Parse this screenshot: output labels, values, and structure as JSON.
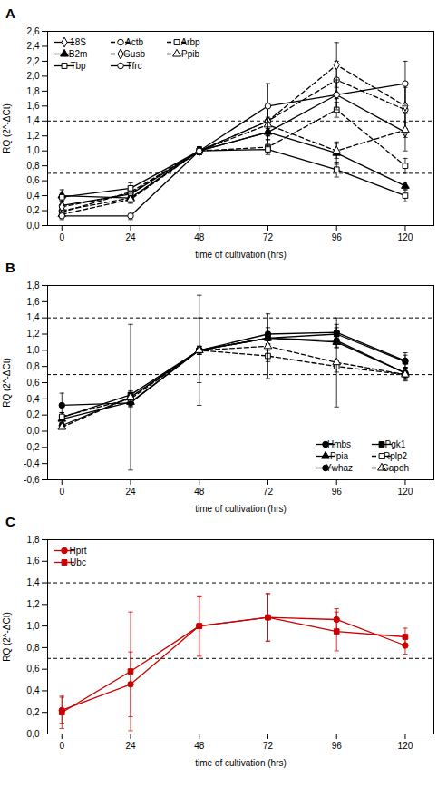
{
  "chart_data": [
    {
      "type": "line",
      "title": "A",
      "xlabel": "time of cultivation (hrs)",
      "ylabel": "RQ (2^-ΔCt)",
      "x": [
        0,
        24,
        48,
        72,
        96,
        120
      ],
      "xlim": [
        -5,
        130
      ],
      "xticks": [
        0,
        24,
        48,
        72,
        96,
        120
      ],
      "ylim": [
        0.0,
        2.6
      ],
      "yticks": [
        {
          "value": 0.0,
          "label": "0,0"
        },
        {
          "value": 0.2,
          "label": "0,2"
        },
        {
          "value": 0.4,
          "label": "0,4"
        },
        {
          "value": 0.6,
          "label": "0,6"
        },
        {
          "value": 0.8,
          "label": "0,8"
        },
        {
          "value": 1.0,
          "label": "1,0"
        },
        {
          "value": 1.2,
          "label": "1,2"
        },
        {
          "value": 1.4,
          "label": "1,4"
        },
        {
          "value": 1.6,
          "label": "1,6"
        },
        {
          "value": 1.8,
          "label": "1,8"
        },
        {
          "value": 2.0,
          "label": "2,0"
        },
        {
          "value": 2.2,
          "label": "2,2"
        },
        {
          "value": 2.4,
          "label": "2,4"
        },
        {
          "value": 2.6,
          "label": "2,6"
        }
      ],
      "hlines": [
        1.4,
        0.7
      ],
      "grid": false,
      "legend": "upper left",
      "series": [
        {
          "name": "18S",
          "values": [
            0.27,
            0.42,
            1.0,
            1.25,
            1.75,
            1.25
          ],
          "yerr": [
            0.1,
            0.05,
            0.05,
            0.15,
            0.2,
            0.25
          ],
          "line_style": "solid",
          "marker": "diamond-open",
          "color": "#000000"
        },
        {
          "name": "Actb",
          "values": [
            0.2,
            0.37,
            1.0,
            1.4,
            1.95,
            1.55
          ],
          "yerr": [
            0.08,
            0.07,
            0.05,
            0.2,
            0.25,
            0.3
          ],
          "line_style": "dashed",
          "marker": "circle-open",
          "color": "#000000"
        },
        {
          "name": "Arbp",
          "values": [
            0.18,
            0.45,
            1.0,
            1.05,
            1.55,
            0.8
          ],
          "yerr": [
            0.05,
            0.06,
            0.05,
            0.1,
            0.1,
            0.1
          ],
          "line_style": "dashed",
          "marker": "square-open",
          "color": "#000000"
        },
        {
          "name": "B2m",
          "values": [
            0.4,
            0.37,
            1.0,
            1.25,
            0.97,
            0.53
          ],
          "yerr": [
            0.08,
            0.05,
            0.05,
            0.1,
            0.15,
            0.05
          ],
          "line_style": "solid",
          "marker": "triangle",
          "color": "#000000"
        },
        {
          "name": "Gusb",
          "values": [
            0.25,
            0.43,
            1.0,
            1.4,
            2.15,
            1.6
          ],
          "yerr": [
            0.1,
            0.08,
            0.05,
            0.2,
            0.3,
            0.3
          ],
          "line_style": "dashed",
          "marker": "diamond-open",
          "color": "#000000"
        },
        {
          "name": "Ppib",
          "values": [
            0.15,
            0.35,
            1.0,
            1.35,
            1.0,
            1.28
          ],
          "yerr": [
            0.05,
            0.05,
            0.05,
            0.1,
            0.1,
            0.1
          ],
          "line_style": "dashed",
          "marker": "triangle-open",
          "color": "#000000"
        },
        {
          "name": "Tbp",
          "values": [
            0.38,
            0.5,
            1.0,
            1.02,
            0.75,
            0.4
          ],
          "yerr": [
            0.05,
            0.07,
            0.05,
            0.05,
            0.1,
            0.08
          ],
          "line_style": "solid",
          "marker": "square-open",
          "color": "#000000"
        },
        {
          "name": "Tfrc",
          "values": [
            0.13,
            0.13,
            1.0,
            1.6,
            1.75,
            1.9
          ],
          "yerr": [
            0.05,
            0.05,
            0.05,
            0.3,
            0.2,
            0.3
          ],
          "line_style": "solid",
          "marker": "circle-open",
          "color": "#000000"
        }
      ]
    },
    {
      "type": "line",
      "title": "B",
      "xlabel": "time of cultivation (hrs)",
      "ylabel": "RQ (2^-ΔCt)",
      "x": [
        0,
        24,
        48,
        72,
        96,
        120
      ],
      "xlim": [
        -5,
        130
      ],
      "xticks": [
        0,
        24,
        48,
        72,
        96,
        120
      ],
      "ylim": [
        -0.6,
        1.8
      ],
      "yticks": [
        {
          "value": -0.6,
          "label": "-0,6"
        },
        {
          "value": -0.4,
          "label": "-0,4"
        },
        {
          "value": -0.2,
          "label": "-0,2"
        },
        {
          "value": 0.0,
          "label": "0,0"
        },
        {
          "value": 0.2,
          "label": "0,2"
        },
        {
          "value": 0.4,
          "label": "0,4"
        },
        {
          "value": 0.6,
          "label": "0,6"
        },
        {
          "value": 0.8,
          "label": "0,8"
        },
        {
          "value": 1.0,
          "label": "1,0"
        },
        {
          "value": 1.2,
          "label": "1,2"
        },
        {
          "value": 1.4,
          "label": "1,4"
        },
        {
          "value": 1.6,
          "label": "1,6"
        },
        {
          "value": 1.8,
          "label": "1,8"
        }
      ],
      "hlines": [
        1.4,
        0.7
      ],
      "grid": false,
      "legend": "lower right",
      "series": [
        {
          "name": "Hmbs",
          "values": [
            0.32,
            0.35,
            1.0,
            1.2,
            1.22,
            0.87
          ],
          "yerr": [
            0.15,
            0.05,
            0.05,
            0.08,
            0.1,
            0.1
          ],
          "line_style": "solid",
          "marker": "circle",
          "color": "#000000"
        },
        {
          "name": "Pgk1",
          "values": [
            0.17,
            0.45,
            1.0,
            1.15,
            1.2,
            0.86
          ],
          "yerr": [
            0.06,
            0.05,
            0.05,
            0.07,
            0.08,
            0.08
          ],
          "line_style": "solid",
          "marker": "square",
          "color": "#000000"
        },
        {
          "name": "Ppia",
          "values": [
            0.15,
            0.36,
            1.0,
            1.15,
            1.1,
            0.72
          ],
          "yerr": [
            0.05,
            0.05,
            0.05,
            0.07,
            0.07,
            0.07
          ],
          "line_style": "solid",
          "marker": "triangle",
          "color": "#000000"
        },
        {
          "name": "Rplp2",
          "values": [
            0.18,
            0.4,
            1.0,
            0.93,
            0.8,
            0.7
          ],
          "yerr": [
            0.05,
            0.05,
            0.05,
            0.07,
            0.07,
            0.07
          ],
          "line_style": "dashed",
          "marker": "square-open",
          "color": "#000000"
        },
        {
          "name": "Ywhaz",
          "values": [
            0.07,
            0.42,
            1.0,
            1.15,
            1.12,
            0.72
          ],
          "yerr": [
            0.03,
            0.9,
            0.68,
            0.08,
            0.08,
            0.07
          ],
          "line_style": "solid",
          "marker": "circle",
          "color": "#000000"
        },
        {
          "name": "Gapdh",
          "values": [
            0.05,
            0.42,
            1.0,
            1.05,
            0.85,
            0.7
          ],
          "yerr": [
            0.02,
            0.05,
            0.4,
            0.4,
            0.55,
            0.08
          ],
          "line_style": "dashed",
          "marker": "triangle-open",
          "color": "#000000"
        }
      ]
    },
    {
      "type": "line",
      "title": "C",
      "xlabel": "time of cultivation (hrs)",
      "ylabel": "RQ (2^-ΔCt)",
      "x": [
        0,
        24,
        48,
        72,
        96,
        120
      ],
      "xlim": [
        -5,
        130
      ],
      "xticks": [
        0,
        24,
        48,
        72,
        96,
        120
      ],
      "ylim": [
        0.0,
        1.8
      ],
      "yticks": [
        {
          "value": 0.0,
          "label": "0,0"
        },
        {
          "value": 0.2,
          "label": "0,2"
        },
        {
          "value": 0.4,
          "label": "0,4"
        },
        {
          "value": 0.6,
          "label": "0,6"
        },
        {
          "value": 0.8,
          "label": "0,8"
        },
        {
          "value": 1.0,
          "label": "1,0"
        },
        {
          "value": 1.2,
          "label": "1,2"
        },
        {
          "value": 1.4,
          "label": "1,4"
        },
        {
          "value": 1.6,
          "label": "1,6"
        },
        {
          "value": 1.8,
          "label": "1,8"
        }
      ],
      "hlines": [
        1.4,
        0.7
      ],
      "grid": false,
      "legend": "upper left",
      "series": [
        {
          "name": "Hprt",
          "values": [
            0.22,
            0.46,
            1.0,
            1.08,
            1.06,
            0.82
          ],
          "yerr": [
            0.12,
            0.3,
            0.28,
            0.22,
            0.1,
            0.08
          ],
          "line_style": "solid",
          "marker": "circle",
          "color": "#cc0000"
        },
        {
          "name": "Ubc",
          "values": [
            0.2,
            0.58,
            1.0,
            1.08,
            0.95,
            0.9
          ],
          "yerr": [
            0.15,
            0.55,
            0.27,
            0.22,
            0.18,
            0.08
          ],
          "line_style": "solid",
          "marker": "square",
          "color": "#cc0000"
        }
      ]
    }
  ]
}
